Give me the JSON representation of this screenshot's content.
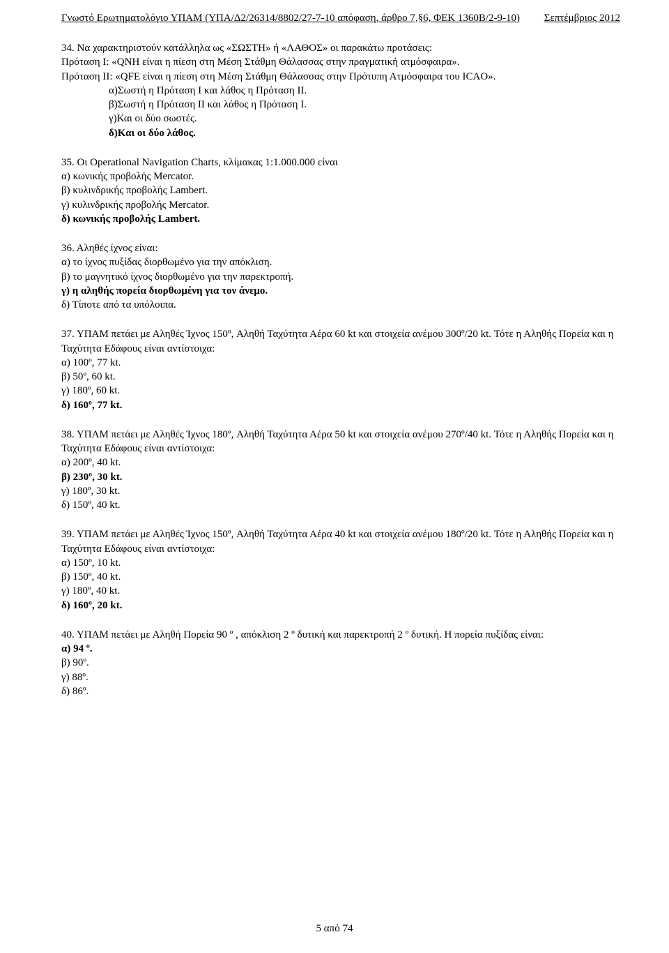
{
  "header": {
    "left": "Γνωστό Ερωτηματολόγιο ΥΠΑΜ (ΥΠΑ/Δ2/26314/8802/27-7-10 απόφαση, άρθρο 7,§6,  ΦΕΚ 1360Β/2-9-10)",
    "right": "Σεπτέμβριος 2012"
  },
  "q34": {
    "stem1": "34. Να χαρακτηριστούν κατάλληλα ως «ΣΩΣΤΗ» ή «ΛΑΘΟΣ» οι παρακάτω προτάσεις:",
    "stem2": "Πρόταση Ι: «QNH είναι η πίεση στη Μέση Στάθμη Θάλασσας στην πραγματική ατμόσφαιρα».",
    "stem3": "Πρόταση ΙΙ:  «QFE είναι η πίεση στη Μέση Στάθμη Θάλασσας στην Πρότυπη Ατμόσφαιρα του ICAO».",
    "a": "α)Σωστή η Πρόταση Ι και λάθος η Πρόταση ΙΙ.",
    "b": "β)Σωστή η Πρόταση ΙΙ και λάθος η Πρόταση Ι.",
    "c": "γ)Και οι δύο σωστές.",
    "d": "δ)Και οι δύο λάθος."
  },
  "q35": {
    "stem": "35. Οι Operational Navigation Charts, κλίμακας 1:1.000.000  είναι",
    "a": "α) κωνικής προβολής Mercator.",
    "b": "β) κυλινδρικής προβολής Lambert.",
    "c": "γ) κυλινδρικής προβολής Mercator.",
    "d": "δ) κωνικής προβολής Lambert."
  },
  "q36": {
    "stem": "36. Αληθές ίχνος είναι:",
    "a": "α) το ίχνος πυξίδας διορθωμένο για την απόκλιση.",
    "b": "β) το μαγνητικό ίχνος διορθωμένο για την παρεκτροπή.",
    "c": "γ) η αληθής πορεία διορθωμένη για τον άνεμο.",
    "d": "δ) Τίποτε από τα υπόλοιπα."
  },
  "q37": {
    "stem": "37. ΥΠΑΜ πετάει με Αληθές Ίχνος 150º, Αληθή Ταχύτητα Αέρα 60 kt και στοιχεία ανέμου 300º/20 kt. Τότε η Αληθής Πορεία και η Ταχύτητα Εδάφους  είναι αντίστοιχα:",
    "a": "α) 100º,  77 kt.",
    "b": "β)  50º,  60 kt.",
    "c": "γ)  180º, 60 kt.",
    "d": "δ) 160º, 77 kt."
  },
  "q38": {
    "stem": "38. ΥΠΑΜ πετάει με Αληθές Ίχνος 180º, Αληθή Ταχύτητα Αέρα 50 kt και στοιχεία ανέμου 270º/40 kt. Τότε η Αληθής Πορεία και η Ταχύτητα Εδάφους  είναι αντίστοιχα:",
    "a": "α) 200º,  40 kt.",
    "b": "β)  230º, 30 kt.",
    "c": "γ)  180º,  30 kt.",
    "d": "δ) 150º,  40 kt."
  },
  "q39": {
    "stem": "39. ΥΠΑΜ πετάει με Αληθές Ίχνος 150º, Αληθή Ταχύτητα Αέρα 40 kt και στοιχεία ανέμου 180º/20 kt. Τότε η Αληθής Πορεία και η Ταχύτητα Εδάφους  είναι αντίστοιχα:",
    "a": "α) 150º,  10 kt.",
    "b": "β)  150º, 40 kt.",
    "c": "γ)  180º,  40 kt.",
    "d": "δ) 160º, 20 kt."
  },
  "q40": {
    "stem": "40. ΥΠΑΜ πετάει με Αληθή Πορεία 90 º , απόκλιση 2 º δυτική και παρεκτροπή 2 º δυτική. Η πορεία πυξίδας είναι:",
    "a": "α) 94 º.",
    "b": "β) 90º.",
    "c": "γ) 88º.",
    "d": "δ) 86º."
  },
  "footer": "5  από 74"
}
